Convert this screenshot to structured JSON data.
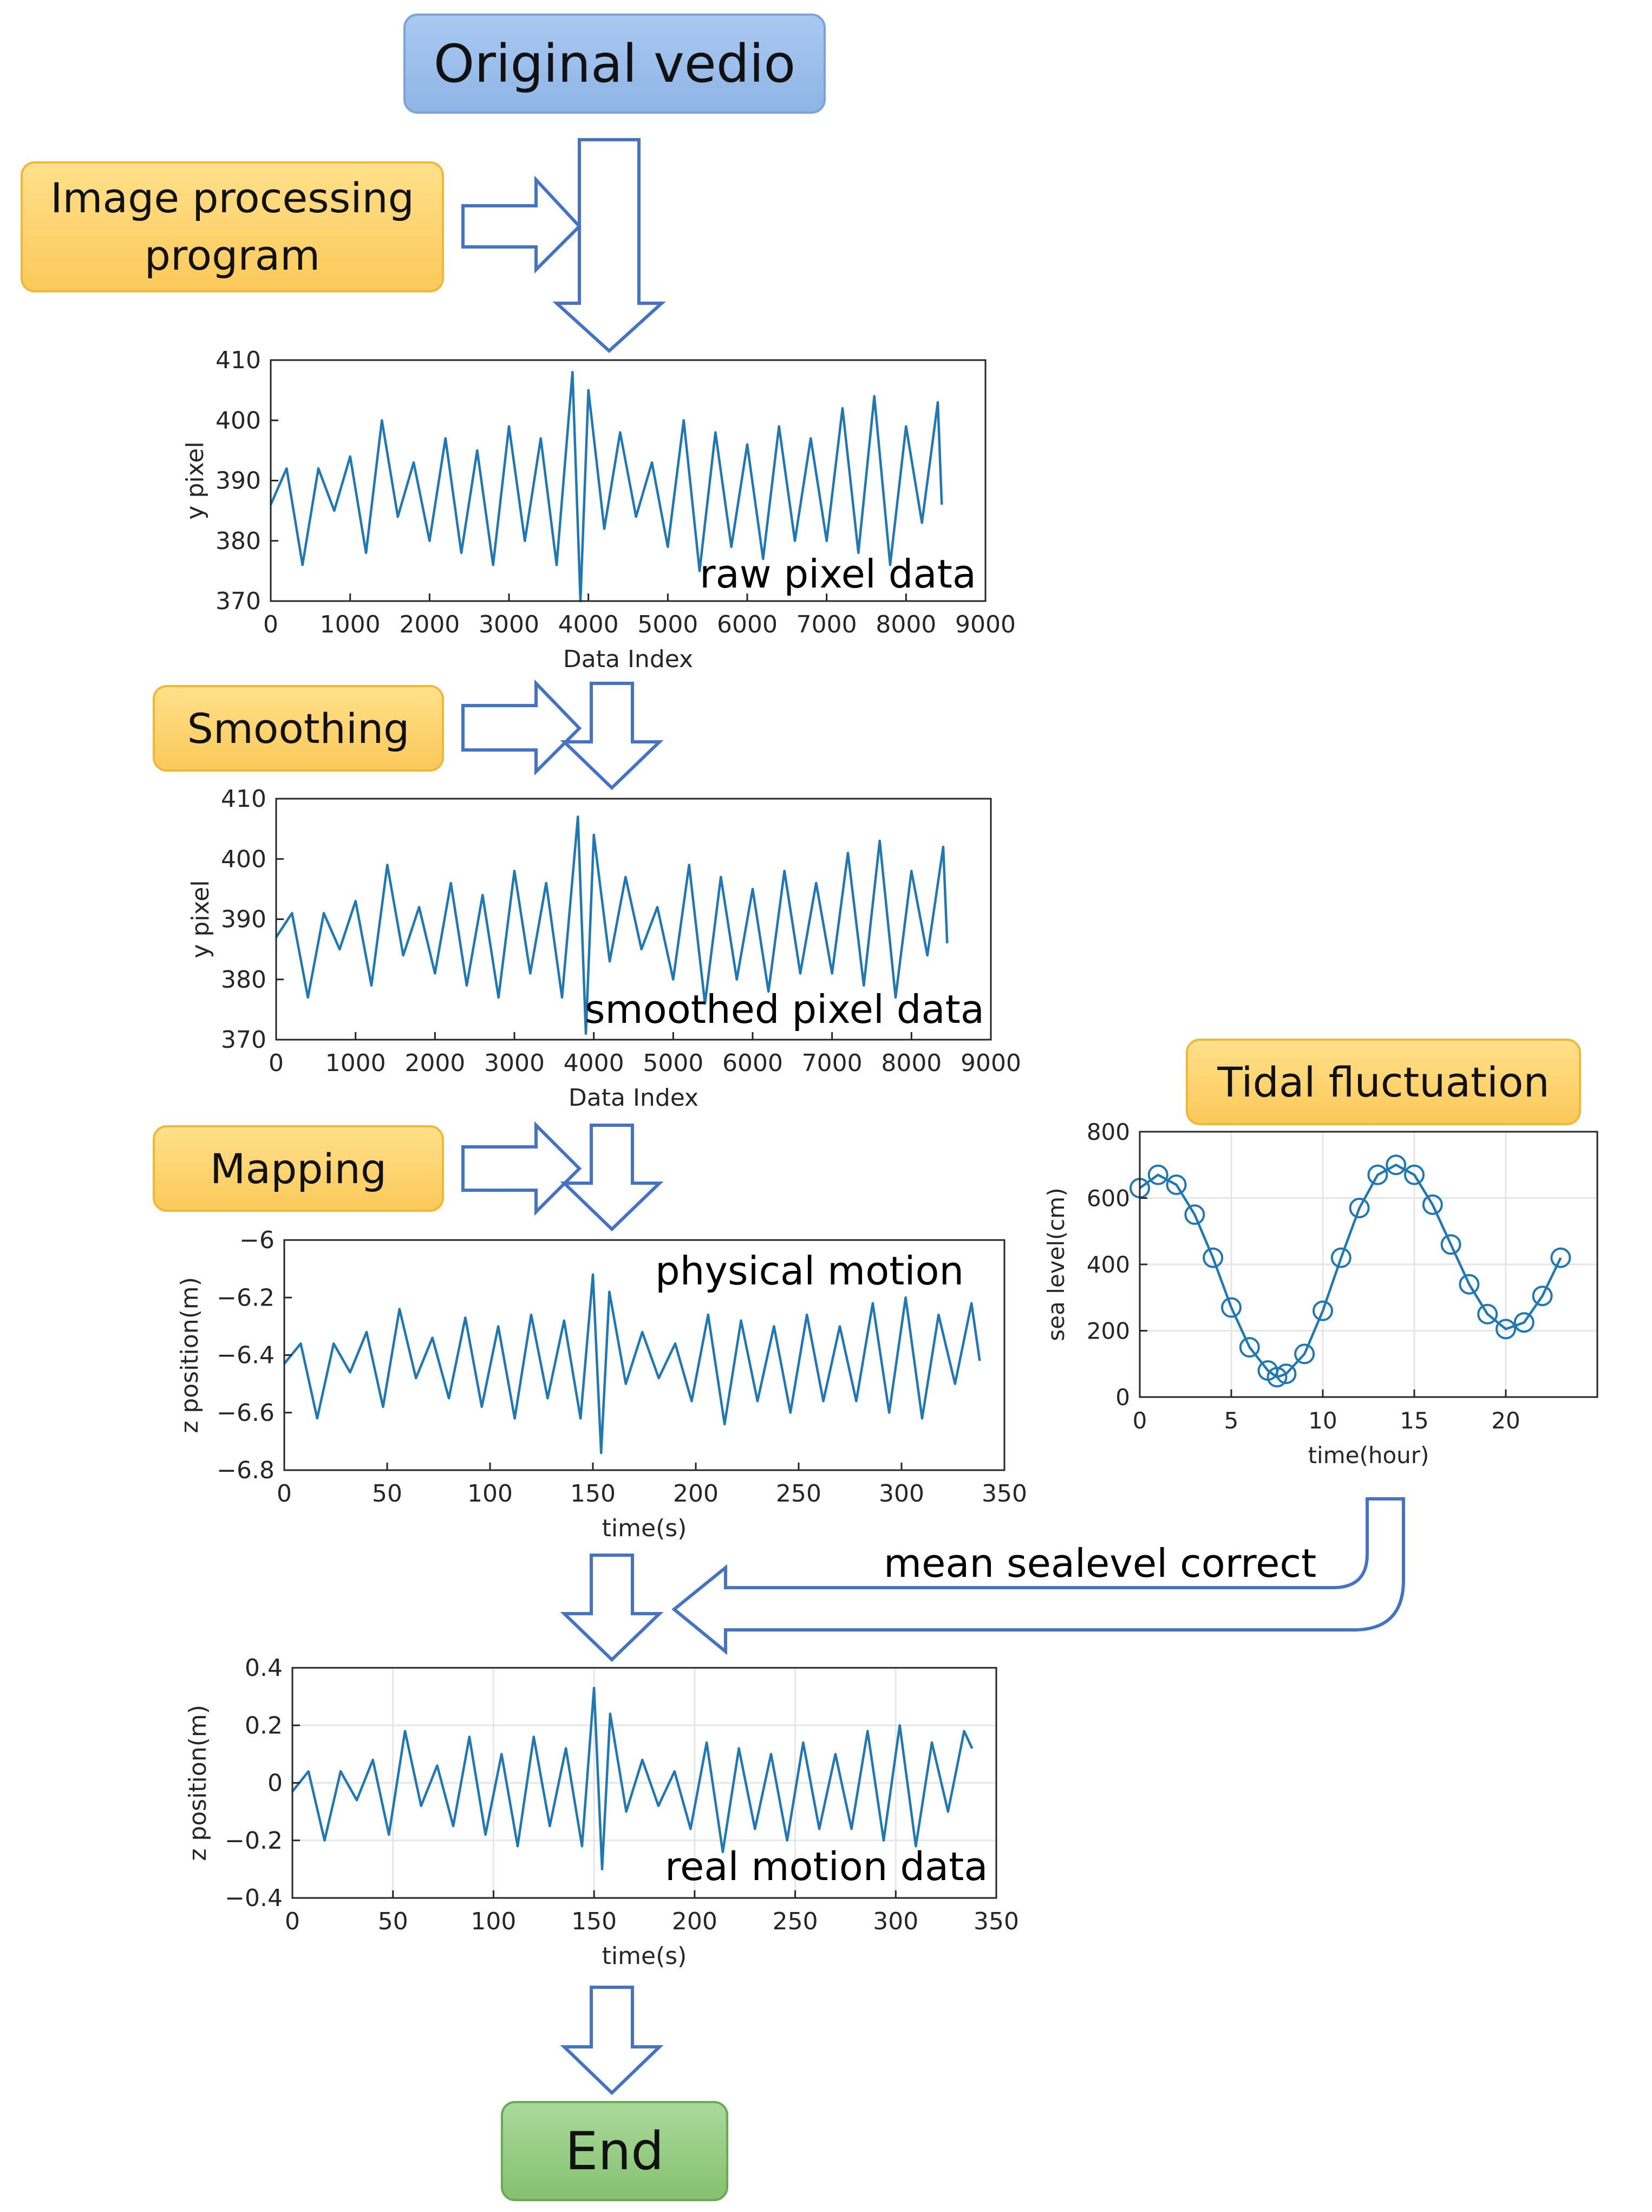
{
  "boxes": {
    "original": "Original vedio",
    "image_processing": "Image processing program",
    "smoothing": "Smoothing",
    "mapping": "Mapping",
    "tidal": "Tidal fluctuation",
    "end": "End"
  },
  "labels": {
    "raw": "raw pixel data",
    "smoothed": "smoothed pixel data",
    "physical": "physical motion",
    "real": "real motion data",
    "correct": "mean sealevel correct"
  },
  "colors": {
    "line": "#1f77b4",
    "arrow": "#4472c4",
    "grid": "#e6e6e6"
  },
  "chart_data": [
    {
      "type": "line",
      "xlabel": "Data Index",
      "ylabel": "y pixel",
      "xlim": [
        0,
        9000
      ],
      "ylim": [
        370,
        410
      ],
      "xticks": [
        "0",
        "1000",
        "2000",
        "3000",
        "4000",
        "5000",
        "6000",
        "7000",
        "8000",
        "9000"
      ],
      "yticks": [
        "370",
        "380",
        "390",
        "400",
        "410"
      ],
      "grid": false,
      "x": [
        0,
        200,
        400,
        600,
        800,
        1000,
        1200,
        1400,
        1600,
        1800,
        2000,
        2200,
        2400,
        2600,
        2800,
        3000,
        3200,
        3400,
        3600,
        3800,
        3900,
        4000,
        4200,
        4400,
        4600,
        4800,
        5000,
        5200,
        5400,
        5600,
        5800,
        6000,
        6200,
        6400,
        6600,
        6800,
        7000,
        7200,
        7400,
        7600,
        7800,
        8000,
        8200,
        8400,
        8450
      ],
      "values": [
        386,
        392,
        376,
        392,
        385,
        394,
        378,
        400,
        384,
        393,
        380,
        397,
        378,
        395,
        376,
        399,
        380,
        397,
        376,
        408,
        370,
        405,
        382,
        398,
        384,
        393,
        379,
        400,
        375,
        398,
        379,
        396,
        377,
        399,
        380,
        397,
        380,
        402,
        378,
        404,
        376,
        399,
        383,
        403,
        386
      ]
    },
    {
      "type": "line",
      "xlabel": "Data Index",
      "ylabel": "y pixel",
      "xlim": [
        0,
        9000
      ],
      "ylim": [
        370,
        410
      ],
      "xticks": [
        "0",
        "1000",
        "2000",
        "3000",
        "4000",
        "5000",
        "6000",
        "7000",
        "8000",
        "9000"
      ],
      "yticks": [
        "370",
        "380",
        "390",
        "400",
        "410"
      ],
      "grid": false,
      "x": [
        0,
        200,
        400,
        600,
        800,
        1000,
        1200,
        1400,
        1600,
        1800,
        2000,
        2200,
        2400,
        2600,
        2800,
        3000,
        3200,
        3400,
        3600,
        3800,
        3900,
        4000,
        4200,
        4400,
        4600,
        4800,
        5000,
        5200,
        5400,
        5600,
        5800,
        6000,
        6200,
        6400,
        6600,
        6800,
        7000,
        7200,
        7400,
        7600,
        7800,
        8000,
        8200,
        8400,
        8450
      ],
      "values": [
        387,
        391,
        377,
        391,
        385,
        393,
        379,
        399,
        384,
        392,
        381,
        396,
        379,
        394,
        377,
        398,
        381,
        396,
        377,
        407,
        371,
        404,
        383,
        397,
        385,
        392,
        380,
        399,
        376,
        397,
        380,
        395,
        378,
        398,
        381,
        396,
        381,
        401,
        379,
        403,
        377,
        398,
        384,
        402,
        386
      ]
    },
    {
      "type": "line",
      "xlabel": "time(s)",
      "ylabel": "z position(m)",
      "xlim": [
        0,
        350
      ],
      "ylim": [
        -6.8,
        -6
      ],
      "xticks": [
        "0",
        "50",
        "100",
        "150",
        "200",
        "250",
        "300",
        "350"
      ],
      "yticks": [
        "−6.8",
        "−6.6",
        "−6.4",
        "−6.2",
        "−6"
      ],
      "grid": false,
      "x": [
        0,
        8,
        16,
        24,
        32,
        40,
        48,
        56,
        64,
        72,
        80,
        88,
        96,
        104,
        112,
        120,
        128,
        136,
        144,
        150,
        154,
        158,
        166,
        174,
        182,
        190,
        198,
        206,
        214,
        222,
        230,
        238,
        246,
        254,
        262,
        270,
        278,
        286,
        294,
        302,
        310,
        318,
        326,
        334,
        338
      ],
      "values": [
        -6.43,
        -6.36,
        -6.62,
        -6.36,
        -6.46,
        -6.32,
        -6.58,
        -6.24,
        -6.48,
        -6.34,
        -6.55,
        -6.27,
        -6.58,
        -6.3,
        -6.62,
        -6.26,
        -6.55,
        -6.28,
        -6.62,
        -6.12,
        -6.74,
        -6.18,
        -6.5,
        -6.32,
        -6.48,
        -6.36,
        -6.56,
        -6.26,
        -6.64,
        -6.28,
        -6.56,
        -6.3,
        -6.6,
        -6.26,
        -6.56,
        -6.3,
        -6.56,
        -6.22,
        -6.6,
        -6.2,
        -6.62,
        -6.26,
        -6.5,
        -6.22,
        -6.42
      ]
    },
    {
      "type": "line",
      "xlabel": "time(s)",
      "ylabel": "z position(m)",
      "xlim": [
        0,
        350
      ],
      "ylim": [
        -0.4,
        0.4
      ],
      "xticks": [
        "0",
        "50",
        "100",
        "150",
        "200",
        "250",
        "300",
        "350"
      ],
      "yticks": [
        "−0.4",
        "−0.2",
        "0",
        "0.2",
        "0.4"
      ],
      "grid": true,
      "x": [
        0,
        8,
        16,
        24,
        32,
        40,
        48,
        56,
        64,
        72,
        80,
        88,
        96,
        104,
        112,
        120,
        128,
        136,
        144,
        150,
        154,
        158,
        166,
        174,
        182,
        190,
        198,
        206,
        214,
        222,
        230,
        238,
        246,
        254,
        262,
        270,
        278,
        286,
        294,
        302,
        310,
        318,
        326,
        334,
        338
      ],
      "values": [
        -0.03,
        0.04,
        -0.2,
        0.04,
        -0.06,
        0.08,
        -0.18,
        0.18,
        -0.08,
        0.06,
        -0.15,
        0.16,
        -0.18,
        0.1,
        -0.22,
        0.16,
        -0.15,
        0.12,
        -0.22,
        0.33,
        -0.3,
        0.24,
        -0.1,
        0.08,
        -0.08,
        0.04,
        -0.16,
        0.14,
        -0.24,
        0.12,
        -0.16,
        0.1,
        -0.2,
        0.14,
        -0.16,
        0.1,
        -0.16,
        0.18,
        -0.2,
        0.2,
        -0.22,
        0.14,
        -0.1,
        0.18,
        0.12
      ]
    },
    {
      "type": "line",
      "xlabel": "time(hour)",
      "ylabel": "sea level(cm)",
      "xlim": [
        0,
        25
      ],
      "ylim": [
        0,
        800
      ],
      "xticks": [
        "0",
        "5",
        "10",
        "15",
        "20"
      ],
      "yticks": [
        "0",
        "200",
        "400",
        "600",
        "800"
      ],
      "grid": true,
      "markers": "circle",
      "x": [
        0,
        1,
        2,
        3,
        4,
        5,
        6,
        7,
        7.5,
        8,
        9,
        10,
        11,
        12,
        13,
        14,
        15,
        16,
        17,
        18,
        19,
        20,
        21,
        22,
        23
      ],
      "values": [
        630,
        670,
        640,
        550,
        420,
        270,
        150,
        80,
        60,
        70,
        130,
        260,
        420,
        570,
        670,
        700,
        670,
        580,
        460,
        340,
        250,
        205,
        225,
        305,
        420
      ]
    }
  ]
}
